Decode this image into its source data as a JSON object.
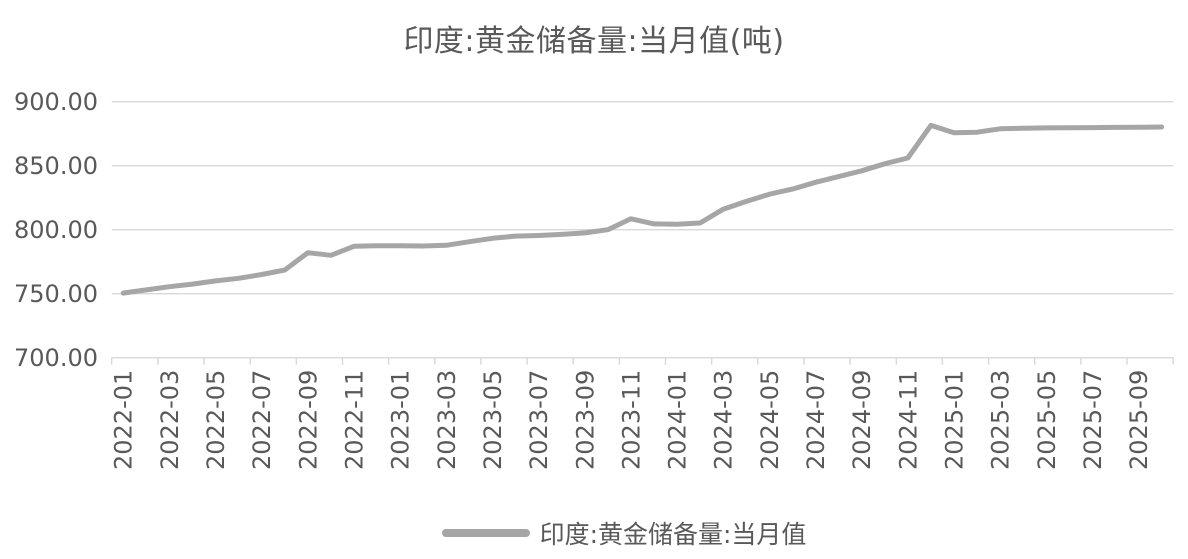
{
  "colors": {
    "line": "#a6a6a6",
    "grid": "#d9d9d9",
    "axis": "#d9d9d9",
    "text": "#595959",
    "background": "#ffffff"
  },
  "chart_data": {
    "type": "line",
    "title": "印度:黄金储备量:当月值(吨)",
    "xlabel": "",
    "ylabel": "",
    "grid": true,
    "legend_position": "bottom",
    "ylim": [
      700,
      900
    ],
    "yticks": [
      {
        "value": 700,
        "label": "700.00"
      },
      {
        "value": 750,
        "label": "750.00"
      },
      {
        "value": 800,
        "label": "800.00"
      },
      {
        "value": 850,
        "label": "850.00"
      },
      {
        "value": 900,
        "label": "900.00"
      }
    ],
    "x_label_interval": 2,
    "x": [
      "2022-01",
      "2022-02",
      "2022-03",
      "2022-04",
      "2022-05",
      "2022-06",
      "2022-07",
      "2022-08",
      "2022-09",
      "2022-10",
      "2022-11",
      "2022-12",
      "2023-01",
      "2023-02",
      "2023-03",
      "2023-04",
      "2023-05",
      "2023-06",
      "2023-07",
      "2023-08",
      "2023-09",
      "2023-10",
      "2023-11",
      "2023-12",
      "2024-01",
      "2024-02",
      "2024-03",
      "2024-04",
      "2024-05",
      "2024-06",
      "2024-07",
      "2024-08",
      "2024-09",
      "2024-10",
      "2024-11",
      "2024-12",
      "2025-01",
      "2025-02",
      "2025-03",
      "2025-04",
      "2025-05",
      "2025-06",
      "2025-07",
      "2025-08",
      "2025-09",
      "2025-10"
    ],
    "series": [
      {
        "name": "印度:黄金储备量:当月值",
        "color": "#a6a6a6",
        "values": [
          750.5,
          753.0,
          755.5,
          757.5,
          760.0,
          762.0,
          765.0,
          768.5,
          782.0,
          780.0,
          787.0,
          787.4,
          787.5,
          787.3,
          787.8,
          790.6,
          793.3,
          795.0,
          795.5,
          796.3,
          797.5,
          800.0,
          808.5,
          804.5,
          804.3,
          805.2,
          816.0,
          822.1,
          827.7,
          831.7,
          837.0,
          841.5,
          846.0,
          851.5,
          856.0,
          881.5,
          875.8,
          876.2,
          878.8,
          879.3,
          879.5,
          879.6,
          879.8,
          879.9,
          880.0,
          880.2
        ]
      }
    ]
  }
}
